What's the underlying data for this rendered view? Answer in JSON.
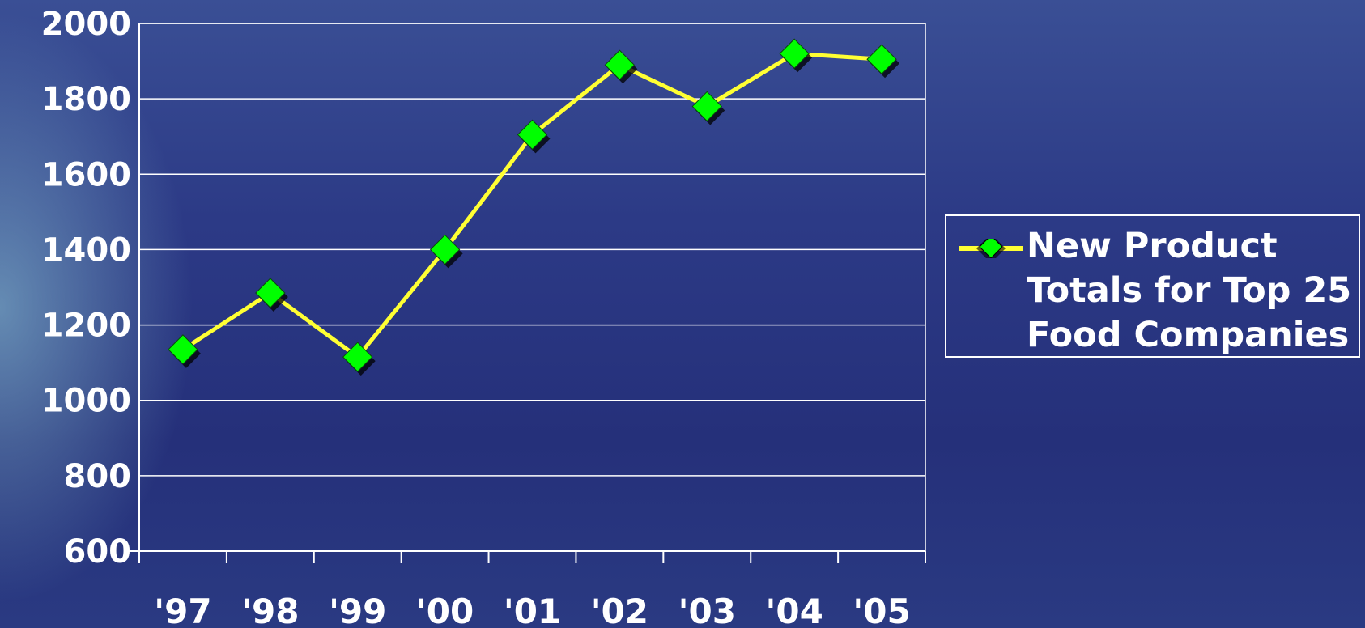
{
  "chart_data": {
    "type": "line",
    "categories": [
      "'97",
      "'98",
      "'99",
      "'00",
      "'01",
      "'02",
      "'03",
      "'04",
      "'05"
    ],
    "series": [
      {
        "name": "New Product Totals for Top 25 Food Companies",
        "values": [
          1135,
          1285,
          1115,
          1400,
          1705,
          1890,
          1780,
          1920,
          1905
        ]
      }
    ],
    "title": "",
    "xlabel": "",
    "ylabel": "",
    "ylim": [
      600,
      2000
    ],
    "yticks": [
      "2000",
      "1800",
      "1600",
      "1400",
      "1200",
      "1000",
      "800",
      "600"
    ],
    "grid": true,
    "legend_position": "right",
    "colors": {
      "line": "#ffff33",
      "marker": "#00ff00",
      "grid": "#ffffff",
      "text": "#ffffff"
    }
  }
}
